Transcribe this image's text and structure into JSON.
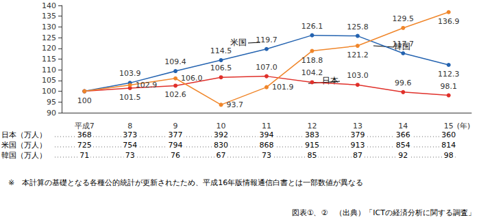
{
  "chart_data": {
    "type": "line",
    "categories": [
      "平成7",
      "8",
      "9",
      "10",
      "11",
      "12",
      "13",
      "14",
      "15"
    ],
    "x_label": "(年)",
    "series": [
      {
        "name": "日本",
        "color": "#e0302a",
        "marker": "circle",
        "values": [
          100,
          101.5,
          102.6,
          106.5,
          107.0,
          104.2,
          103.0,
          99.6,
          98.1
        ],
        "value_labels": [
          "100",
          "101.5",
          "102.6",
          "106.5",
          "107.0",
          "104.2",
          "103.0",
          "99.6",
          "98.1"
        ]
      },
      {
        "name": "米国",
        "color": "#2463b0",
        "marker": "circle",
        "values": [
          100,
          103.9,
          109.4,
          114.5,
          119.7,
          126.1,
          125.8,
          117.7,
          112.3
        ],
        "value_labels": [
          null,
          "103.9",
          "109.4",
          "114.5",
          "119.7",
          "126.1",
          "125.8",
          "117.7",
          "112.3"
        ]
      },
      {
        "name": "韓国",
        "color": "#f0862a",
        "marker": "circle",
        "values": [
          100,
          102.9,
          106.0,
          93.7,
          101.9,
          118.8,
          121.2,
          129.5,
          136.9
        ],
        "value_labels": [
          null,
          "102.9",
          "106.0",
          "93.7",
          "101.9",
          "118.8",
          "121.2",
          "129.5",
          "136.9"
        ]
      }
    ],
    "ylim": [
      90,
      140
    ],
    "yticks": [
      90,
      95,
      100,
      105,
      110,
      115,
      120,
      125,
      130,
      135,
      140
    ],
    "grid": false,
    "data_labels": true,
    "table": {
      "rows": [
        {
          "label": "日本（万人）",
          "values": [
            368,
            373,
            377,
            392,
            394,
            383,
            379,
            366,
            360
          ]
        },
        {
          "label": "米国（万人）",
          "values": [
            725,
            754,
            794,
            830,
            868,
            915,
            913,
            854,
            814
          ]
        },
        {
          "label": "韓国（万人）",
          "values": [
            71,
            73,
            76,
            67,
            73,
            85,
            87,
            92,
            98
          ]
        }
      ]
    },
    "footnote": "※　本計算の基礎となる各種公的統計が更新されたため、平成16年版情報通信白書とは一部数値が異なる",
    "source": "図表①、②　（出典）「ICTの経済分析に関する調査」"
  }
}
